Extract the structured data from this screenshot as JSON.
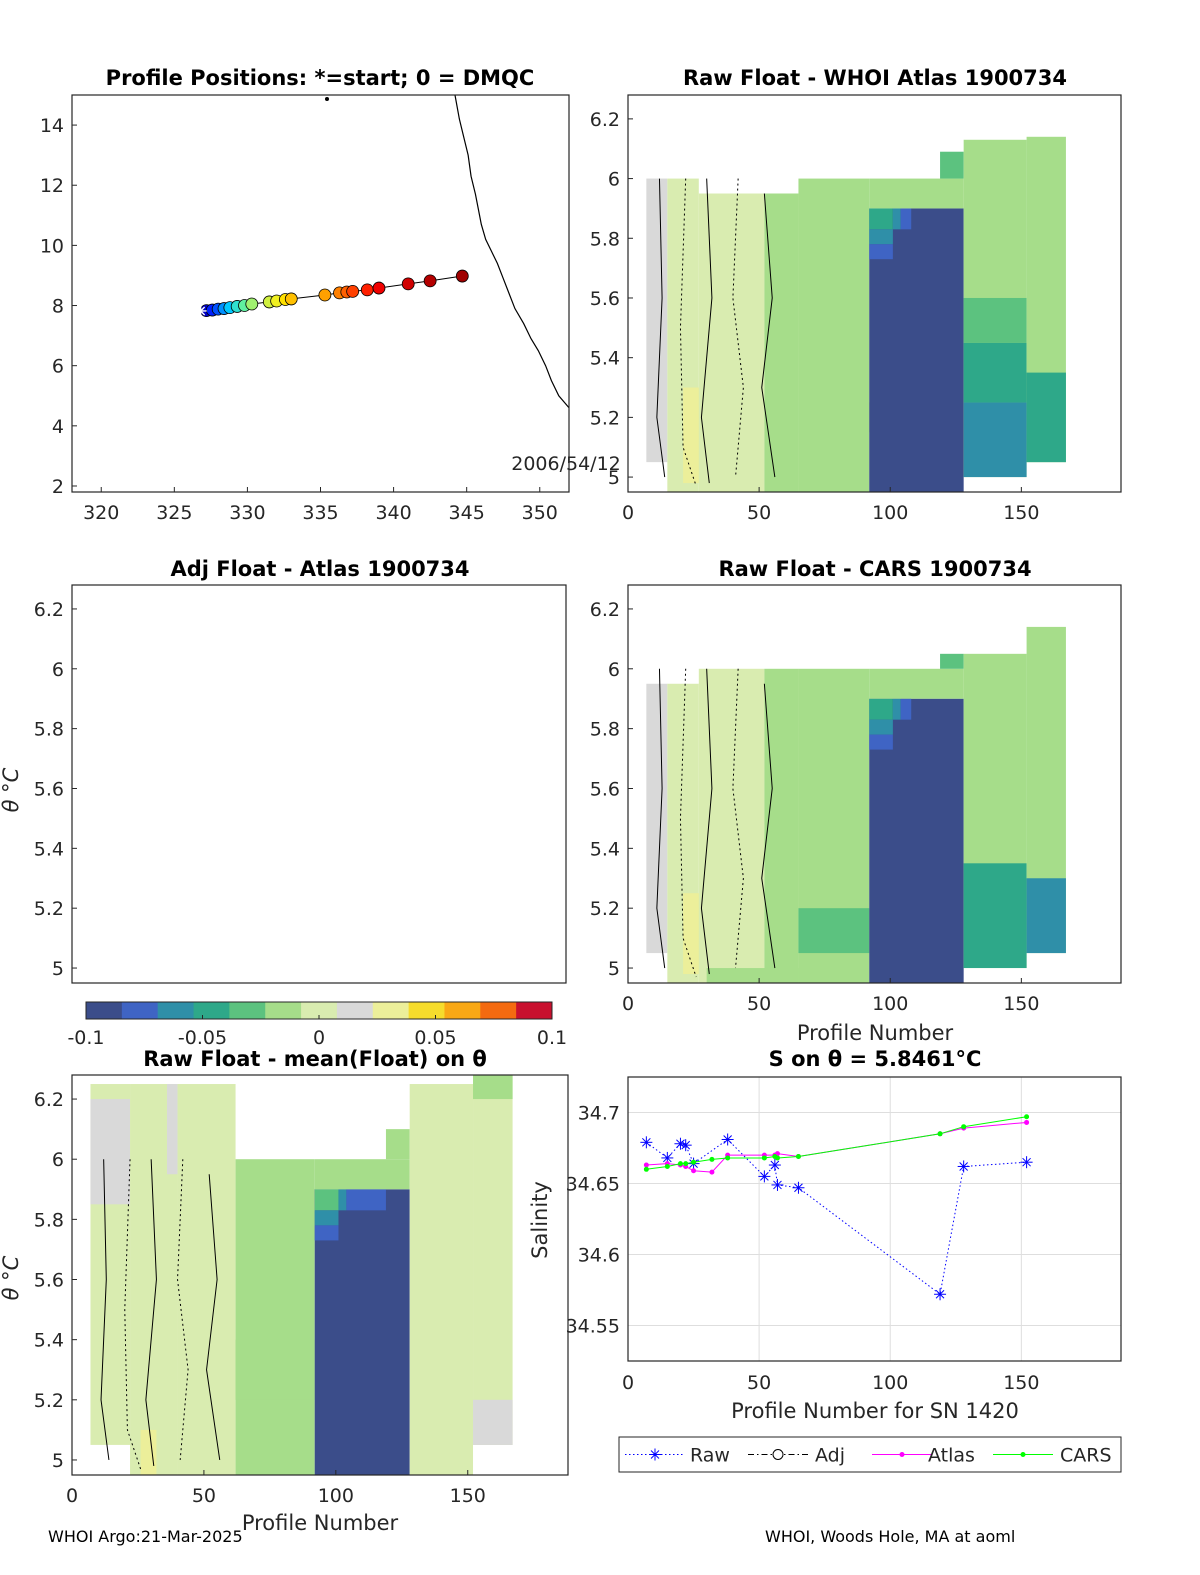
{
  "footer": {
    "left": "WHOI Argo:21-Mar-2025",
    "right": "WHOI, Woods Hole, MA at aoml"
  },
  "colors": {
    "raw": "#0000ff",
    "adj": "#000000",
    "atlas": "#ff00ff",
    "cars": "#00ff00",
    "colormap": [
      "#3b4d8a",
      "#3f64c4",
      "#2f8fa8",
      "#2ea889",
      "#5cc27f",
      "#a6dd8a",
      "#d9ecb0",
      "#d9d9d9",
      "#ecef9a",
      "#f6dc2c",
      "#f9a815",
      "#f46a10",
      "#c8102e"
    ]
  },
  "colorbar": {
    "ticks": [
      "-0.1",
      "-0.05",
      "0",
      "0.05",
      "0.1"
    ],
    "range": [
      -0.1,
      0.1
    ]
  },
  "chart_data": [
    {
      "id": "map",
      "type": "scatter",
      "title": "Profile Positions: *=start; 0 = DMQC",
      "xlim": [
        318,
        352
      ],
      "ylim": [
        1.8,
        15
      ],
      "xticks": [
        "320",
        "325",
        "330",
        "335",
        "340",
        "345",
        "350"
      ],
      "yticks": [
        "2",
        "4",
        "6",
        "8",
        "10",
        "12",
        "14"
      ],
      "annotation": "2006/54/12",
      "start": [
        326.8,
        7.82
      ],
      "points": [
        [
          327.2,
          7.83
        ],
        [
          327.6,
          7.85
        ],
        [
          328.0,
          7.88
        ],
        [
          328.4,
          7.9
        ],
        [
          328.8,
          7.93
        ],
        [
          329.3,
          7.97
        ],
        [
          329.8,
          8.0
        ],
        [
          330.3,
          8.05
        ],
        [
          331.5,
          8.12
        ],
        [
          332.0,
          8.15
        ],
        [
          332.6,
          8.2
        ],
        [
          333.0,
          8.22
        ],
        [
          335.3,
          8.35
        ],
        [
          336.3,
          8.42
        ],
        [
          336.8,
          8.45
        ],
        [
          337.2,
          8.47
        ],
        [
          338.2,
          8.52
        ],
        [
          339.0,
          8.58
        ],
        [
          341.0,
          8.72
        ],
        [
          342.5,
          8.82
        ],
        [
          344.7,
          8.98
        ]
      ],
      "coast": [
        [
          344.2,
          15
        ],
        [
          344.5,
          14.2
        ],
        [
          344.8,
          13.6
        ],
        [
          345.1,
          13.0
        ],
        [
          345.3,
          12.3
        ],
        [
          345.6,
          11.7
        ],
        [
          345.8,
          11.2
        ],
        [
          346.0,
          10.7
        ],
        [
          346.3,
          10.2
        ],
        [
          346.7,
          9.8
        ],
        [
          347.1,
          9.4
        ],
        [
          347.5,
          8.9
        ],
        [
          347.9,
          8.4
        ],
        [
          348.3,
          7.9
        ],
        [
          348.9,
          7.4
        ],
        [
          349.4,
          6.9
        ],
        [
          349.9,
          6.5
        ],
        [
          350.4,
          6.0
        ],
        [
          350.8,
          5.5
        ],
        [
          351.3,
          5.0
        ],
        [
          352,
          4.6
        ]
      ]
    },
    {
      "id": "raw-whoi",
      "type": "heatmap",
      "title": "Raw Float - WHOI Atlas  1900734",
      "xlim": [
        0,
        188
      ],
      "ylim": [
        4.95,
        6.28
      ],
      "xticks": [
        "0",
        "50",
        "100",
        "150"
      ],
      "yticks": [
        "5",
        "5.2",
        "5.4",
        "5.6",
        "5.8",
        "6",
        "6.2"
      ],
      "ylabel": "",
      "xlabel": "",
      "blocks": [
        {
          "x": [
            7,
            15
          ],
          "y": [
            5.05,
            6.0
          ],
          "v": 0.018
        },
        {
          "x": [
            15,
            27
          ],
          "y": [
            4.95,
            6.0
          ],
          "v": 0.0
        },
        {
          "x": [
            21,
            32
          ],
          "y": [
            4.98,
            5.3
          ],
          "v": 0.04
        },
        {
          "x": [
            27,
            52
          ],
          "y": [
            4.95,
            5.95
          ],
          "v": 0.0
        },
        {
          "x": [
            52,
            65
          ],
          "y": [
            4.95,
            5.95
          ],
          "v": -0.01
        },
        {
          "x": [
            65,
            92
          ],
          "y": [
            4.95,
            6.0
          ],
          "v": -0.02
        },
        {
          "x": [
            65,
            92
          ],
          "y": [
            5.15,
            5.25
          ],
          "v": -0.025
        },
        {
          "x": [
            92,
            128
          ],
          "y": [
            4.95,
            5.9
          ],
          "v": -0.1
        },
        {
          "x": [
            92,
            101
          ],
          "y": [
            5.83,
            5.9
          ],
          "v": -0.055
        },
        {
          "x": [
            92,
            101
          ],
          "y": [
            5.78,
            5.83
          ],
          "v": -0.07
        },
        {
          "x": [
            92,
            101
          ],
          "y": [
            5.73,
            5.78
          ],
          "v": -0.08
        },
        {
          "x": [
            101,
            104
          ],
          "y": [
            5.83,
            5.9
          ],
          "v": -0.065
        },
        {
          "x": [
            104,
            108
          ],
          "y": [
            5.83,
            5.9
          ],
          "v": -0.08
        },
        {
          "x": [
            92,
            128
          ],
          "y": [
            5.9,
            6.0
          ],
          "v": -0.02
        },
        {
          "x": [
            119,
            128
          ],
          "y": [
            6.0,
            6.09
          ],
          "v": -0.03
        },
        {
          "x": [
            128,
            152
          ],
          "y": [
            5.0,
            6.13
          ],
          "v": -0.022
        },
        {
          "x": [
            128,
            152
          ],
          "y": [
            5.0,
            5.25
          ],
          "v": -0.07
        },
        {
          "x": [
            128,
            152
          ],
          "y": [
            5.25,
            5.45
          ],
          "v": -0.05
        },
        {
          "x": [
            128,
            152
          ],
          "y": [
            5.45,
            5.6
          ],
          "v": -0.035
        },
        {
          "x": [
            152,
            167
          ],
          "y": [
            5.05,
            6.14
          ],
          "v": -0.022
        },
        {
          "x": [
            152,
            167
          ],
          "y": [
            5.05,
            5.35
          ],
          "v": -0.05
        }
      ]
    },
    {
      "id": "adj-atlas",
      "type": "heatmap",
      "title": "Adj Float - Atlas  1900734",
      "xlim": [
        0,
        188
      ],
      "ylim": [
        4.95,
        6.28
      ],
      "xticks": [],
      "yticks": [
        "5",
        "5.2",
        "5.4",
        "5.6",
        "5.8",
        "6",
        "6.2"
      ],
      "ylabel": "θ °C",
      "blocks": []
    },
    {
      "id": "raw-cars",
      "type": "heatmap",
      "title": "Raw Float - CARS  1900734",
      "xlim": [
        0,
        188
      ],
      "ylim": [
        4.95,
        6.28
      ],
      "xticks": [
        "0",
        "50",
        "100",
        "150"
      ],
      "yticks": [
        "5",
        "5.2",
        "5.4",
        "5.6",
        "5.8",
        "6",
        "6.2"
      ],
      "xlabel": "Profile Number",
      "blocks": [
        {
          "x": [
            7,
            15
          ],
          "y": [
            5.05,
            5.95
          ],
          "v": 0.018
        },
        {
          "x": [
            15,
            27
          ],
          "y": [
            4.95,
            5.95
          ],
          "v": 0.0
        },
        {
          "x": [
            21,
            32
          ],
          "y": [
            4.98,
            5.25
          ],
          "v": 0.03
        },
        {
          "x": [
            27,
            52
          ],
          "y": [
            4.95,
            6.0
          ],
          "v": 0.0
        },
        {
          "x": [
            30,
            65
          ],
          "y": [
            4.95,
            5.0
          ],
          "v": -0.025
        },
        {
          "x": [
            52,
            65
          ],
          "y": [
            4.95,
            6.0
          ],
          "v": -0.012
        },
        {
          "x": [
            65,
            92
          ],
          "y": [
            4.95,
            6.0
          ],
          "v": -0.02
        },
        {
          "x": [
            65,
            92
          ],
          "y": [
            5.05,
            5.2
          ],
          "v": -0.03
        },
        {
          "x": [
            92,
            128
          ],
          "y": [
            4.95,
            5.9
          ],
          "v": -0.1
        },
        {
          "x": [
            92,
            101
          ],
          "y": [
            5.83,
            5.9
          ],
          "v": -0.055
        },
        {
          "x": [
            92,
            101
          ],
          "y": [
            5.78,
            5.83
          ],
          "v": -0.07
        },
        {
          "x": [
            92,
            101
          ],
          "y": [
            5.73,
            5.78
          ],
          "v": -0.08
        },
        {
          "x": [
            101,
            104
          ],
          "y": [
            5.83,
            5.9
          ],
          "v": -0.065
        },
        {
          "x": [
            104,
            108
          ],
          "y": [
            5.83,
            5.9
          ],
          "v": -0.08
        },
        {
          "x": [
            92,
            128
          ],
          "y": [
            5.9,
            6.0
          ],
          "v": -0.02
        },
        {
          "x": [
            119,
            128
          ],
          "y": [
            6.0,
            6.05
          ],
          "v": -0.03
        },
        {
          "x": [
            128,
            152
          ],
          "y": [
            5.0,
            6.05
          ],
          "v": -0.022
        },
        {
          "x": [
            128,
            152
          ],
          "y": [
            5.0,
            5.35
          ],
          "v": -0.045
        },
        {
          "x": [
            152,
            167
          ],
          "y": [
            5.05,
            6.14
          ],
          "v": -0.025
        },
        {
          "x": [
            152,
            167
          ],
          "y": [
            5.05,
            5.3
          ],
          "v": -0.06
        }
      ]
    },
    {
      "id": "raw-mean",
      "type": "heatmap",
      "title": "Raw Float - mean(Float) on θ",
      "xlim": [
        0,
        188
      ],
      "ylim": [
        4.95,
        6.28
      ],
      "xticks": [
        "0",
        "50",
        "100",
        "150"
      ],
      "yticks": [
        "5",
        "5.2",
        "5.4",
        "5.6",
        "5.8",
        "6",
        "6.2"
      ],
      "ylabel": "θ °C",
      "xlabel": "Profile Number",
      "blocks": [
        {
          "x": [
            7,
            22
          ],
          "y": [
            5.05,
            6.25
          ],
          "v": 0.0
        },
        {
          "x": [
            7,
            22
          ],
          "y": [
            5.85,
            6.2
          ],
          "v": 0.01
        },
        {
          "x": [
            22,
            40
          ],
          "y": [
            4.95,
            6.25
          ],
          "v": 0.0
        },
        {
          "x": [
            26,
            32
          ],
          "y": [
            4.95,
            5.1
          ],
          "v": 0.04
        },
        {
          "x": [
            36,
            40
          ],
          "y": [
            5.95,
            6.25
          ],
          "v": 0.02
        },
        {
          "x": [
            40,
            62
          ],
          "y": [
            4.95,
            6.25
          ],
          "v": 0.0
        },
        {
          "x": [
            62,
            92
          ],
          "y": [
            4.95,
            6.0
          ],
          "v": -0.015
        },
        {
          "x": [
            62,
            92
          ],
          "y": [
            5.2,
            5.4
          ],
          "v": -0.02
        },
        {
          "x": [
            92,
            128
          ],
          "y": [
            4.95,
            5.9
          ],
          "v": -0.1
        },
        {
          "x": [
            92,
            101
          ],
          "y": [
            5.83,
            5.9
          ],
          "v": -0.03
        },
        {
          "x": [
            92,
            101
          ],
          "y": [
            5.78,
            5.83
          ],
          "v": -0.065
        },
        {
          "x": [
            92,
            101
          ],
          "y": [
            5.73,
            5.78
          ],
          "v": -0.08
        },
        {
          "x": [
            101,
            104
          ],
          "y": [
            5.83,
            5.9
          ],
          "v": -0.065
        },
        {
          "x": [
            104,
            119
          ],
          "y": [
            5.83,
            5.9
          ],
          "v": -0.08
        },
        {
          "x": [
            92,
            128
          ],
          "y": [
            5.9,
            6.0
          ],
          "v": -0.02
        },
        {
          "x": [
            119,
            128
          ],
          "y": [
            6.0,
            6.1
          ],
          "v": -0.02
        },
        {
          "x": [
            128,
            152
          ],
          "y": [
            4.95,
            6.25
          ],
          "v": 0.0
        },
        {
          "x": [
            152,
            167
          ],
          "y": [
            5.05,
            6.3
          ],
          "v": 0.0
        },
        {
          "x": [
            152,
            167
          ],
          "y": [
            5.05,
            5.2
          ],
          "v": 0.015
        },
        {
          "x": [
            152,
            167
          ],
          "y": [
            6.2,
            6.3
          ],
          "v": -0.02
        }
      ]
    },
    {
      "id": "s-on-theta",
      "type": "line",
      "title": "S on θ = 5.8461°C",
      "xlabel": "Profile Number for SN 1420",
      "ylabel": "Salinity",
      "xlim": [
        0,
        188
      ],
      "ylim": [
        34.525,
        34.725
      ],
      "xticks": [
        "0",
        "50",
        "100",
        "150"
      ],
      "yticks": [
        "34.55",
        "34.6",
        "34.65",
        "34.7"
      ],
      "grid": true,
      "legend": {
        "placement": "bottom",
        "entries": [
          "Raw",
          "Adj",
          "Atlas",
          "CARS"
        ]
      },
      "series": [
        {
          "name": "Raw",
          "x": [
            7,
            15,
            20,
            22,
            25,
            38,
            52,
            56,
            57,
            65,
            119,
            128,
            152
          ],
          "y": [
            34.679,
            34.668,
            34.678,
            34.677,
            34.664,
            34.681,
            34.655,
            34.663,
            34.649,
            34.647,
            34.572,
            34.662,
            34.665
          ]
        },
        {
          "name": "Atlas",
          "x": [
            7,
            15,
            20,
            22,
            25,
            32,
            38,
            52,
            56,
            57,
            65,
            119,
            128,
            152
          ],
          "y": [
            34.663,
            34.664,
            34.663,
            34.662,
            34.659,
            34.658,
            34.67,
            34.67,
            34.67,
            34.671,
            34.669,
            34.685,
            34.689,
            34.693
          ]
        },
        {
          "name": "CARS",
          "x": [
            7,
            15,
            20,
            22,
            25,
            32,
            38,
            52,
            56,
            57,
            65,
            119,
            128,
            152
          ],
          "y": [
            34.66,
            34.662,
            34.664,
            34.664,
            34.665,
            34.667,
            34.668,
            34.668,
            34.669,
            34.668,
            34.669,
            34.685,
            34.69,
            34.697
          ]
        }
      ]
    }
  ]
}
